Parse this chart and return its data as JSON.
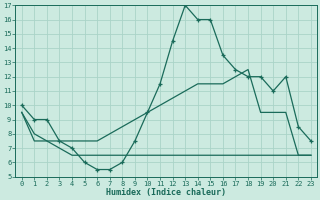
{
  "xlabel": "Humidex (Indice chaleur)",
  "xlim": [
    -0.5,
    23.5
  ],
  "ylim": [
    5,
    17
  ],
  "yticks": [
    5,
    6,
    7,
    8,
    9,
    10,
    11,
    12,
    13,
    14,
    15,
    16,
    17
  ],
  "xticks": [
    0,
    1,
    2,
    3,
    4,
    5,
    6,
    7,
    8,
    9,
    10,
    11,
    12,
    13,
    14,
    15,
    16,
    17,
    18,
    19,
    20,
    21,
    22,
    23
  ],
  "bg_color": "#cceae0",
  "line_color": "#1a6b5a",
  "grid_color": "#aad4c8",
  "main_line": [
    10,
    9,
    9,
    7.5,
    7,
    6,
    5.5,
    5.5,
    6,
    7.5,
    9.5,
    11.5,
    14.5,
    17,
    16,
    16,
    13.5,
    12.5,
    12,
    12,
    11,
    12,
    8.5,
    7.5
  ],
  "main_markers": [
    0,
    1,
    2,
    3,
    4,
    5,
    6,
    7,
    8,
    9,
    10,
    11,
    12,
    13,
    14,
    15,
    16,
    17,
    18,
    19,
    20,
    21,
    22,
    23
  ],
  "line_upper": [
    9.5,
    8.0,
    7.5,
    7.5,
    7.5,
    7.5,
    7.5,
    8.0,
    8.5,
    9.0,
    9.5,
    10.0,
    10.5,
    11.0,
    11.5,
    11.5,
    11.5,
    12.0,
    12.5,
    9.5,
    9.5,
    9.5,
    6.5,
    6.5
  ],
  "line_lower": [
    9.5,
    7.5,
    7.5,
    7.0,
    6.5,
    6.5,
    6.5,
    6.5,
    6.5,
    6.5,
    6.5,
    6.5,
    6.5,
    6.5,
    6.5,
    6.5,
    6.5,
    6.5,
    6.5,
    6.5,
    6.5,
    6.5,
    6.5,
    6.5
  ]
}
